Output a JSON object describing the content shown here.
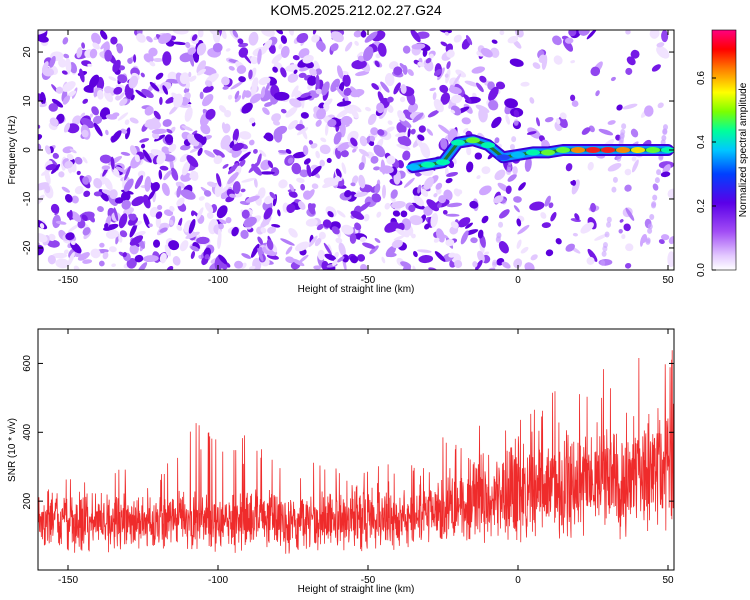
{
  "figure": {
    "title": "KOM5.2025.212.02.27.G24"
  },
  "colors": {
    "snr_line": "#ef2b2b",
    "spectrogram_low": "#efdcff",
    "spectrogram_mid": "#7a1fe6",
    "ridge": "#1d7a2f"
  },
  "chart_data": [
    {
      "type": "heatmap",
      "title": "KOM5.2025.212.02.27.G24",
      "xlabel": "Height of straight line (km)",
      "ylabel": "Frequency (Hz)",
      "xlim": [
        -160,
        52
      ],
      "ylim": [
        -24.5,
        24.5
      ],
      "x_ticks": [
        -150,
        -100,
        -50,
        0,
        50
      ],
      "y_ticks": [
        -20,
        -10,
        0,
        10,
        20
      ],
      "colorbar": {
        "label": "Normalized spectral amplitude",
        "range": [
          0.0,
          0.75
        ],
        "ticks": [
          0.0,
          0.2,
          0.4,
          0.6
        ],
        "colormap": "white-violet-blue-cyan-green-yellow-red-magenta"
      },
      "ridge": {
        "description": "strong narrow-band signal near 0 Hz",
        "x": [
          -35,
          -30,
          -25,
          -20,
          -15,
          -10,
          -5,
          0,
          5,
          10,
          15,
          20,
          25,
          30,
          35,
          40,
          45,
          50
        ],
        "frequency": [
          -3.5,
          -3,
          -2.5,
          1.5,
          2,
          1,
          -1.5,
          -1,
          -0.5,
          -0.5,
          0,
          0,
          0,
          0,
          0,
          0,
          0,
          0
        ],
        "amplitude": [
          0.25,
          0.3,
          0.3,
          0.35,
          0.45,
          0.3,
          0.15,
          0.25,
          0.35,
          0.4,
          0.45,
          0.6,
          0.7,
          0.75,
          0.65,
          0.55,
          0.45,
          0.35
        ]
      },
      "grid": false
    },
    {
      "type": "line",
      "xlabel": "Height of straight line (km)",
      "ylabel": "SNR (10 * v/v)",
      "xlim": [
        -160,
        52
      ],
      "ylim": [
        0,
        700
      ],
      "x_ticks": [
        -150,
        -100,
        -50,
        0,
        50
      ],
      "y_ticks": [
        200,
        400,
        600
      ],
      "series": [
        {
          "x": [
            -160,
            -150,
            -140,
            -130,
            -120,
            -110,
            -100,
            -90,
            -80,
            -70,
            -60,
            -50,
            -40,
            -30,
            -20,
            -10,
            0,
            10,
            20,
            30,
            40,
            50
          ],
          "mean": [
            140,
            135,
            140,
            140,
            135,
            150,
            135,
            145,
            140,
            140,
            150,
            145,
            140,
            160,
            190,
            210,
            220,
            230,
            250,
            270,
            280,
            290
          ],
          "peak": [
            215,
            270,
            275,
            300,
            285,
            440,
            420,
            400,
            310,
            320,
            310,
            290,
            330,
            330,
            460,
            420,
            440,
            520,
            580,
            640,
            620,
            690
          ]
        }
      ],
      "grid": false
    }
  ]
}
